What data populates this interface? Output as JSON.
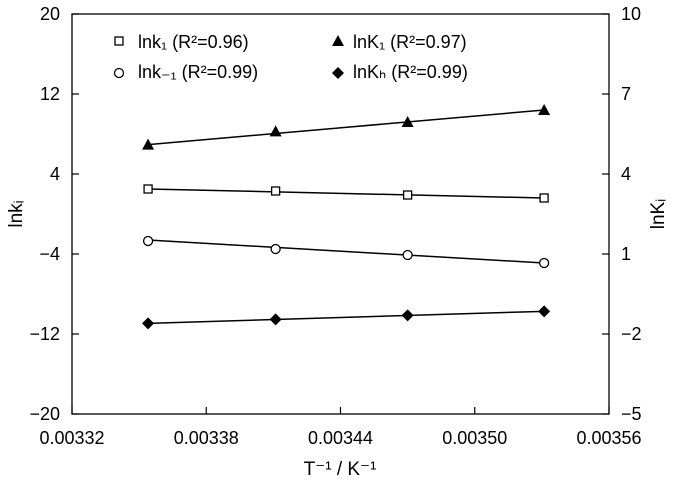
{
  "chart_data": {
    "type": "scatter",
    "xlabel": "T⁻¹ / K⁻¹",
    "ylabel_left": "lnkᵢ",
    "ylabel_right": "lnKᵢ",
    "xlim": [
      0.00332,
      0.00356
    ],
    "ylim_left": [
      -20,
      20
    ],
    "ylim_right": [
      -5,
      10
    ],
    "x_ticks": [
      "0.00332",
      "0.00338",
      "0.00344",
      "0.00350",
      "0.00356"
    ],
    "y_left_ticks": [
      "20",
      "12",
      "4",
      "−4",
      "−12",
      "−20"
    ],
    "y_right_ticks": [
      "10",
      "7",
      "4",
      "1",
      "−2",
      "−5"
    ],
    "grid": false,
    "legend_position": "top",
    "series": [
      {
        "name": "lnk₁ (R²=0.96)",
        "axis": "left",
        "marker": "open-square",
        "x": [
          0.003354,
          0.003411,
          0.00347,
          0.003531
        ],
        "y": [
          2.5,
          2.3,
          1.9,
          1.6
        ],
        "fit": [
          2.5,
          1.6
        ]
      },
      {
        "name": "lnk₋₁ (R²=0.99)",
        "axis": "left",
        "marker": "open-circle",
        "x": [
          0.003354,
          0.003411,
          0.00347,
          0.003531
        ],
        "y": [
          -2.7,
          -3.5,
          -4.1,
          -4.9
        ],
        "fit": [
          -2.6,
          -4.9
        ]
      },
      {
        "name": "lnK₁ (R²=0.97)",
        "axis": "right",
        "marker": "filled-triangle",
        "x": [
          0.003354,
          0.003411,
          0.00347,
          0.003531
        ],
        "y": [
          5.1,
          5.6,
          5.95,
          6.4
        ],
        "fit": [
          5.1,
          6.4
        ]
      },
      {
        "name": "lnKₕ (R²=0.99)",
        "axis": "right",
        "marker": "filled-diamond",
        "x": [
          0.003354,
          0.003411,
          0.00347,
          0.003531
        ],
        "y": [
          -1.6,
          -1.45,
          -1.3,
          -1.15
        ],
        "fit": [
          -1.6,
          -1.15
        ]
      }
    ]
  }
}
